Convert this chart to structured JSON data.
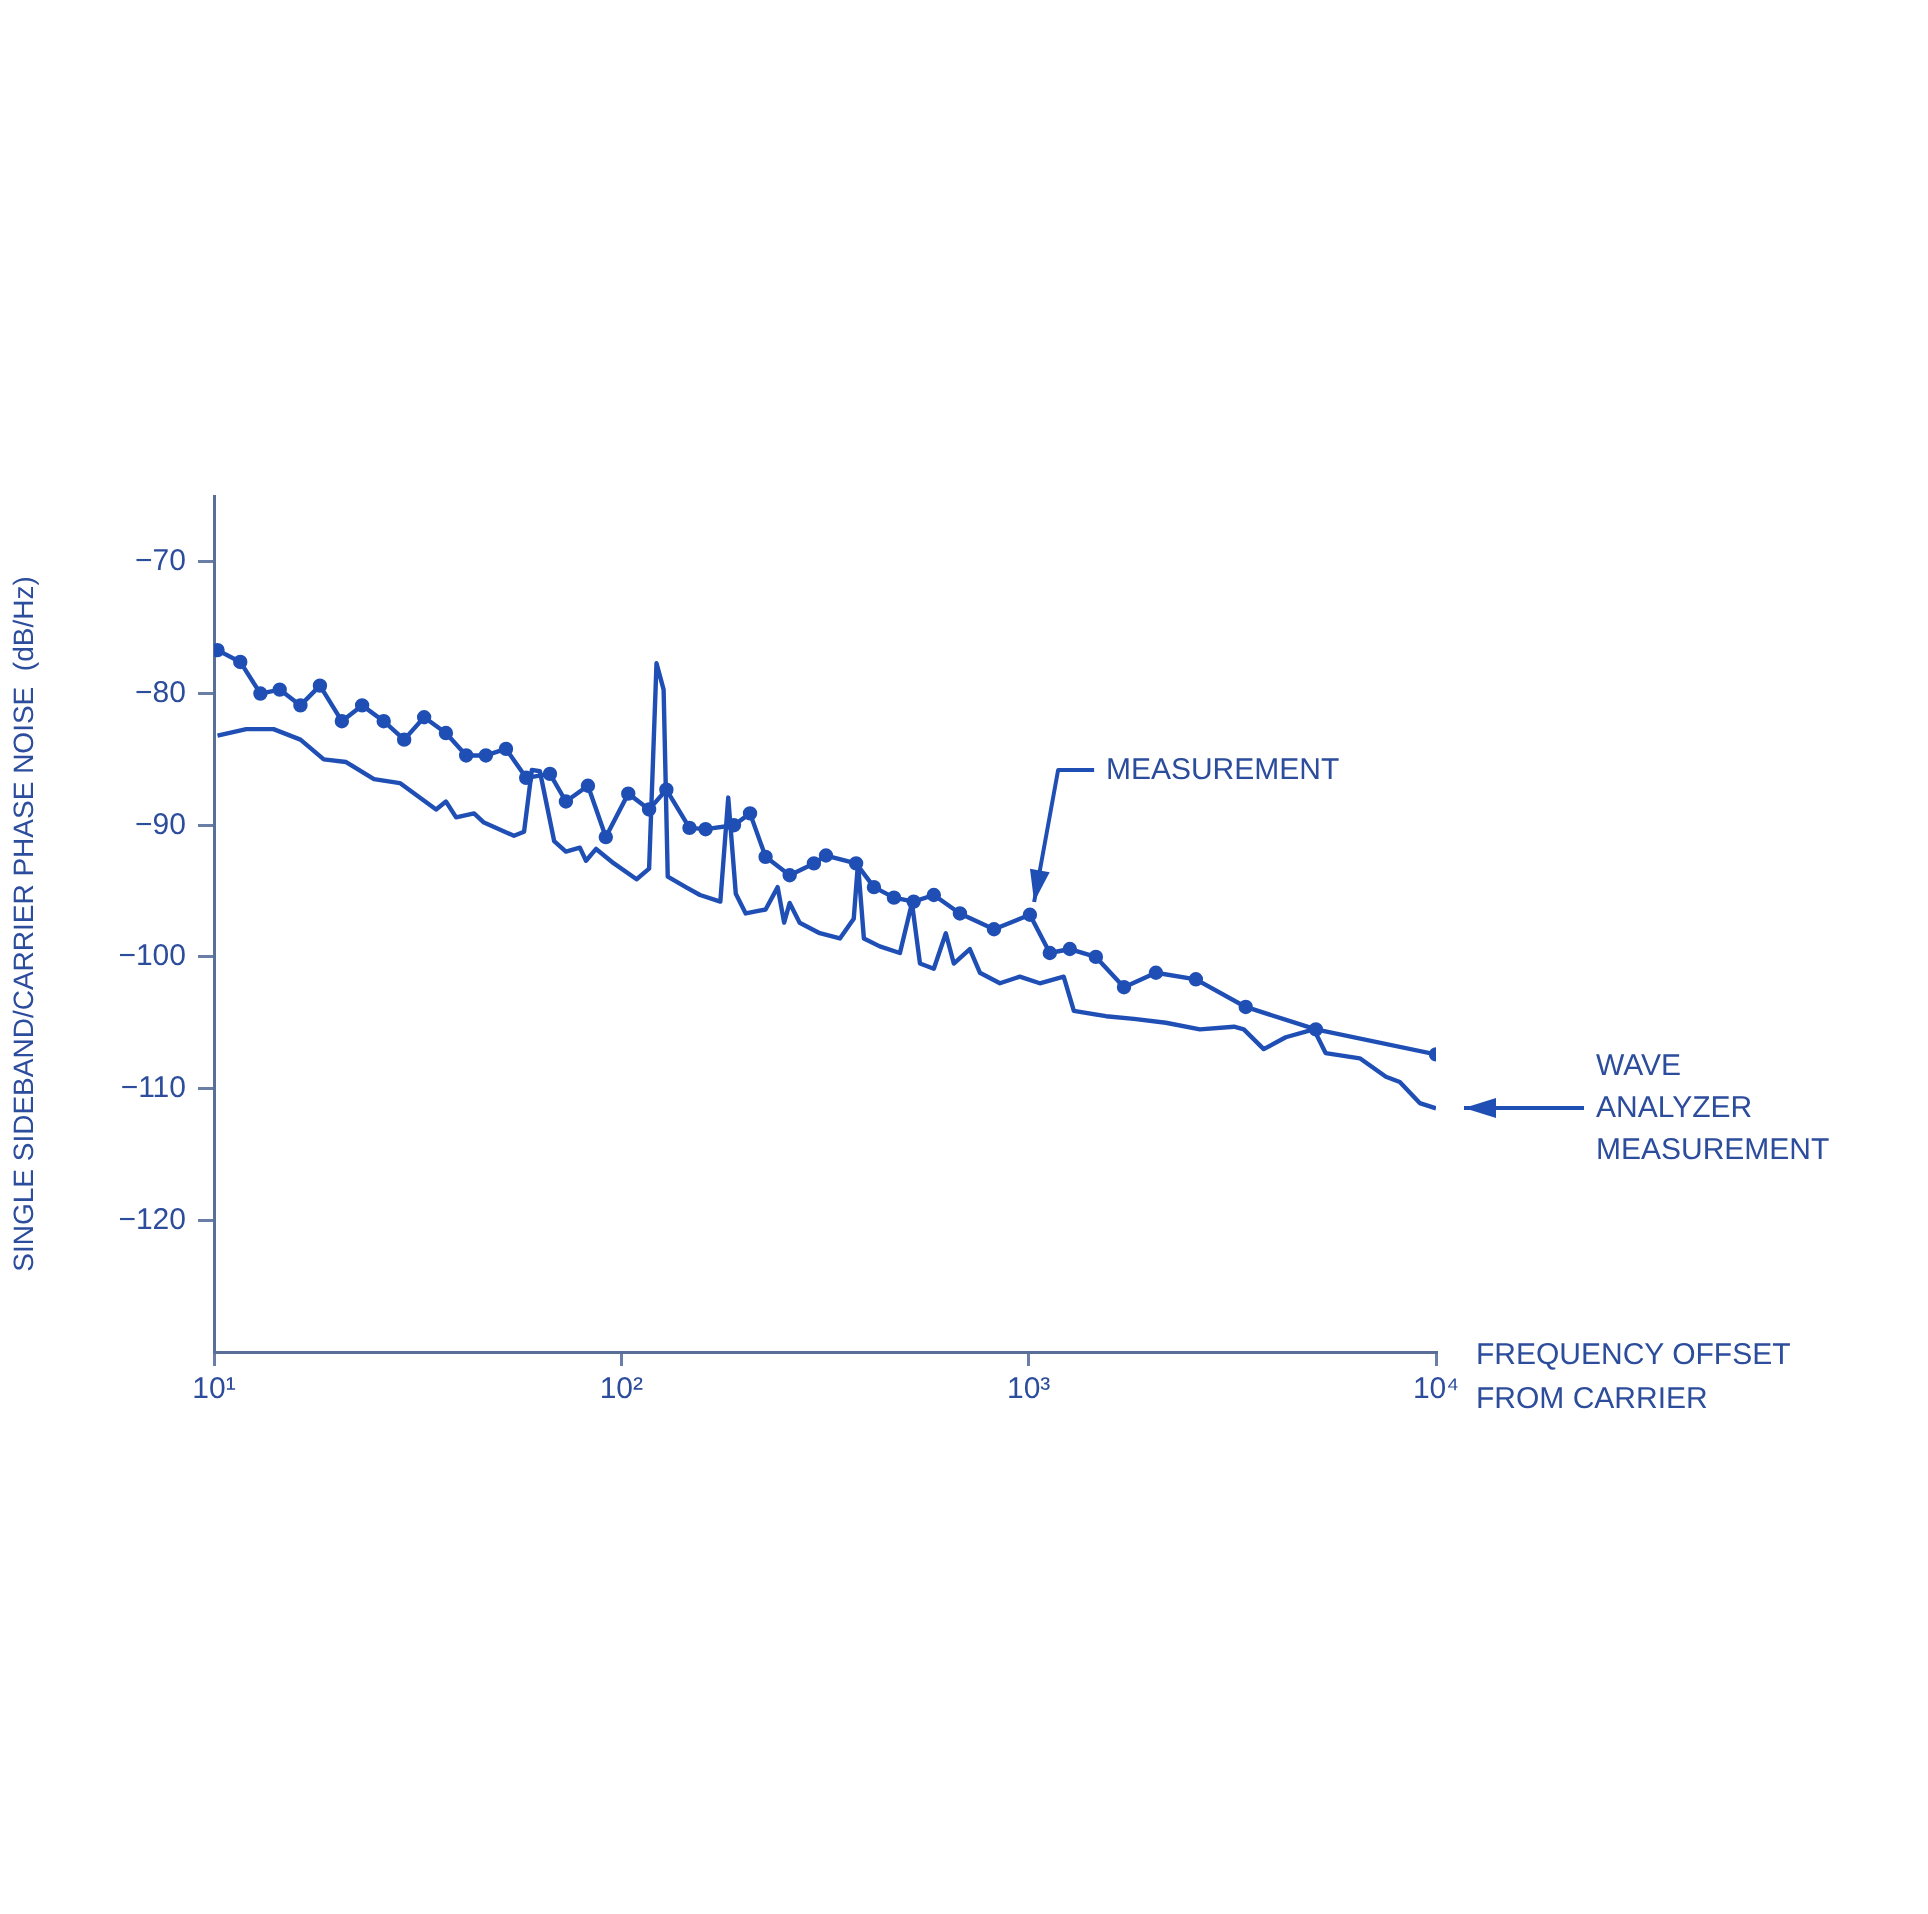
{
  "chart_data": {
    "type": "line",
    "xlabel": "FREQUENCY OFFSET FROM CARRIER",
    "ylabel": "SINGLE SIDEBAND/CARRIER PHASE NOISE  (dB/Hz)",
    "log": "x",
    "grid": false,
    "legend": "right",
    "xlim": [
      10,
      10000
    ],
    "xticks": [
      {
        "value": 10,
        "label": "10¹"
      },
      {
        "value": 100,
        "label": "10²"
      },
      {
        "value": 1000,
        "label": "10³"
      },
      {
        "value": 10000,
        "label": "10⁴"
      }
    ],
    "ylim": [
      -130,
      -65
    ],
    "yticks": [
      {
        "value": -70,
        "label": "−70"
      },
      {
        "value": -80,
        "label": "−80"
      },
      {
        "value": -90,
        "label": "−90"
      },
      {
        "value": -100,
        "label": "−100"
      },
      {
        "value": -110,
        "label": "−110"
      },
      {
        "value": -120,
        "label": "−120"
      }
    ],
    "series": [
      {
        "name": "MEASUREMENT",
        "color": "#1f4fb5",
        "marker": "circle",
        "line_style": "solid",
        "x": [
          10.2,
          11.6,
          13.0,
          14.5,
          16.3,
          18.2,
          20.6,
          23.1,
          26.1,
          29.3,
          32.8,
          37.1,
          41.6,
          46.5,
          52.1,
          58.4,
          66.8,
          73.1,
          82.8,
          91.6,
          104,
          117,
          129,
          147,
          161,
          189,
          207,
          226,
          259,
          297,
          318,
          377,
          417,
          467,
          522,
          585,
          678,
          822,
          1007,
          1127,
          1262,
          1462,
          1714,
          2053,
          2573,
          3411,
          5070,
          10000
        ],
        "values": [
          -76.7,
          -77.6,
          -80.0,
          -79.7,
          -80.9,
          -79.4,
          -82.1,
          -80.9,
          -82.1,
          -83.5,
          -81.8,
          -83.0,
          -84.7,
          -84.7,
          -84.2,
          -86.4,
          -86.1,
          -88.2,
          -87.0,
          -90.9,
          -87.6,
          -88.8,
          -87.3,
          -90.2,
          -90.3,
          -90.0,
          -89.1,
          -92.4,
          -93.8,
          -92.9,
          -92.3,
          -92.9,
          -94.7,
          -95.5,
          -95.8,
          -95.3,
          -96.7,
          -97.9,
          -96.8,
          -99.7,
          -99.4,
          -100.0,
          -102.3,
          -101.2,
          -101.7,
          -103.8,
          -105.5,
          -107.4
        ]
      },
      {
        "name": "WAVE ANALYZER MEASUREMENT",
        "color": "#1f4fb5",
        "marker": "none",
        "line_style": "solid",
        "x": [
          10.2,
          12.0,
          14.0,
          16.3,
          18.6,
          21.1,
          24.7,
          28.6,
          35.1,
          37.1,
          39.3,
          43.5,
          46.0,
          54.5,
          57.7,
          60.3,
          63.1,
          68.4,
          73.1,
          79.1,
          81.9,
          86.7,
          95.9,
          109,
          117,
          122,
          127,
          130,
          144,
          156,
          175,
          183,
          191,
          202,
          226,
          242,
          251,
          259,
          274,
          307,
          344,
          372,
          381,
          394,
          431,
          483,
          517,
          541,
          585,
          626,
          655,
          717,
          759,
          850,
          951,
          1065,
          1219,
          1291,
          1548,
          1813,
          2172,
          2632,
          3192,
          3374,
          3776,
          4277,
          5012,
          5358,
          6501,
          7534,
          8150,
          9121,
          10000
        ],
        "values": [
          -83.2,
          -82.7,
          -82.7,
          -83.5,
          -85.0,
          -85.2,
          -86.5,
          -86.8,
          -88.8,
          -88.2,
          -89.4,
          -89.1,
          -89.8,
          -90.8,
          -90.5,
          -85.8,
          -85.9,
          -91.2,
          -92.0,
          -91.7,
          -92.7,
          -91.8,
          -92.9,
          -94.1,
          -93.3,
          -77.7,
          -79.7,
          -93.9,
          -94.7,
          -95.3,
          -95.8,
          -87.9,
          -95.2,
          -96.7,
          -96.4,
          -94.7,
          -97.4,
          -95.9,
          -97.4,
          -98.2,
          -98.6,
          -97.1,
          -92.9,
          -98.6,
          -99.2,
          -99.7,
          -95.9,
          -100.5,
          -100.9,
          -98.2,
          -100.5,
          -99.4,
          -101.2,
          -102.0,
          -101.5,
          -102.0,
          -101.5,
          -104.1,
          -104.5,
          -104.7,
          -105.0,
          -105.5,
          -105.3,
          -105.5,
          -107.0,
          -106.1,
          -105.5,
          -107.3,
          -107.7,
          -109.1,
          -109.5,
          -111.1,
          -111.5
        ]
      }
    ]
  }
}
